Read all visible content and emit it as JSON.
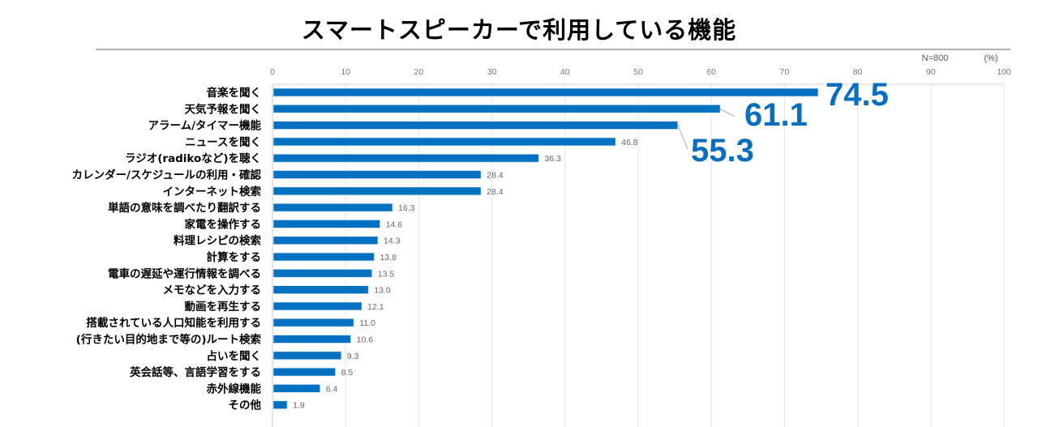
{
  "chart_data": {
    "type": "bar",
    "orientation": "horizontal",
    "title": "スマートスピーカーで利用している機能",
    "sample_note": "N=800",
    "unit_label": "(%)",
    "xlabel": "",
    "ylabel": "",
    "xlim": [
      0,
      100
    ],
    "x_ticks": [
      0,
      10,
      20,
      30,
      40,
      50,
      60,
      70,
      80,
      90,
      100
    ],
    "x_tick_labels": [
      "0",
      "10",
      "20",
      "30",
      "40",
      "50",
      "60",
      "70",
      "80",
      "90",
      "100"
    ],
    "grid": true,
    "axis_position": "top",
    "bar_color": "#0070C0",
    "highlight_color": "#0A6EBD",
    "categories": [
      "音楽を聞く",
      "天気予報を聞く",
      "アラーム/タイマー機能",
      "ニュースを聞く",
      "ラジオ(radikoなど)を聴く",
      "カレンダー/スケジュールの利用・確認",
      "インターネット検索",
      "単語の意味を調べたり翻訳する",
      "家電を操作する",
      "料理レシピの検索",
      "計算をする",
      "電車の遅延や運行情報を調べる",
      "メモなどを入力する",
      "動画を再生する",
      "搭載されている人口知能を利用する",
      "(行きたい目的地まで等の)ルート検索",
      "占いを聞く",
      "英会話等、言語学習をする",
      "赤外線機能",
      "その他"
    ],
    "values": [
      74.5,
      61.1,
      55.3,
      46.8,
      36.3,
      28.4,
      28.4,
      16.3,
      14.6,
      14.3,
      13.8,
      13.5,
      13.0,
      12.1,
      11.0,
      10.6,
      9.3,
      8.5,
      6.4,
      1.9
    ],
    "value_labels": [
      "74.5",
      "61.1",
      "55.3",
      "46.8",
      "36.3",
      "28.4",
      "28.4",
      "16.3",
      "14.6",
      "14.3",
      "13.8",
      "13.5",
      "13.0",
      "12.1",
      "11.0",
      "10.6",
      "9.3",
      "8.5",
      "6.4",
      "1.9"
    ],
    "highlighted_indices": [
      0,
      1,
      2
    ]
  }
}
